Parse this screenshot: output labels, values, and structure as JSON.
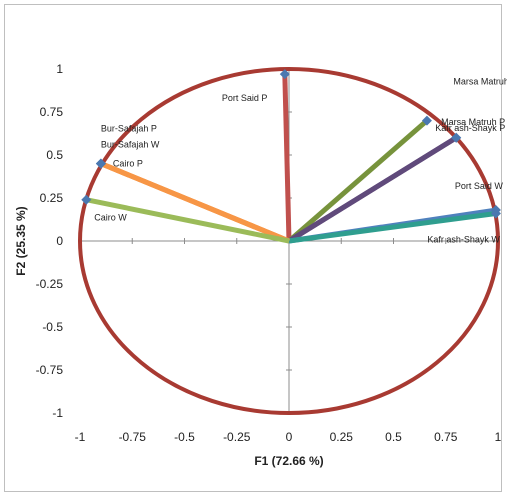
{
  "chart_data": {
    "type": "scatter",
    "subtype": "correlation-circle",
    "xlabel": "F1 (72.66 %)",
    "ylabel": "F2 (25.35 %)",
    "xlim": [
      -1,
      1
    ],
    "ylim": [
      -1,
      1
    ],
    "xticks": [
      -1,
      -0.75,
      -0.5,
      -0.25,
      0,
      0.25,
      0.5,
      0.75,
      1
    ],
    "yticks": [
      1,
      0.75,
      0.5,
      0.25,
      0,
      -0.25,
      -0.5,
      -0.75,
      -1
    ],
    "xtick_labels": [
      "-1",
      "-0.75",
      "-0.5",
      "-0.25",
      "0",
      "0.25",
      "0.5",
      "0.75",
      "1"
    ],
    "ytick_labels": [
      "1",
      "0.75",
      "0.5",
      "0.25",
      "0",
      "-0.25",
      "-0.5",
      "-0.75",
      "-1"
    ],
    "circle_color": "#a83a32",
    "marker_color": "#4a78b0",
    "variables": [
      {
        "label": "Port Said P",
        "x": -0.02,
        "y": 0.97,
        "color": "#c0504d"
      },
      {
        "label": "Marsa Matruh W",
        "x": 0.66,
        "y": 0.7,
        "color": "#77933c"
      },
      {
        "label": "Marsa Matruh P",
        "x": 0.8,
        "y": 0.6,
        "color": "#604a7b"
      },
      {
        "label": "Kafr ash-Shayk P",
        "x": 0.8,
        "y": 0.6,
        "color": "#604a7b"
      },
      {
        "label": "Port Said W",
        "x": 0.99,
        "y": 0.18,
        "color": "#4f81bd"
      },
      {
        "label": "Kafr ash-Shayk W",
        "x": 0.99,
        "y": 0.16,
        "color": "#2f9e8f"
      },
      {
        "label": "Bur-Safajah P",
        "x": -0.9,
        "y": 0.45,
        "color": "#f79646"
      },
      {
        "label": "Bur-Safajah W",
        "x": -0.9,
        "y": 0.45,
        "color": "#f79646"
      },
      {
        "label": "Cairo P",
        "x": -0.9,
        "y": 0.45,
        "color": "#f79646"
      },
      {
        "label": "Cairo W",
        "x": -0.97,
        "y": 0.24,
        "color": "#9bbb59"
      }
    ]
  }
}
